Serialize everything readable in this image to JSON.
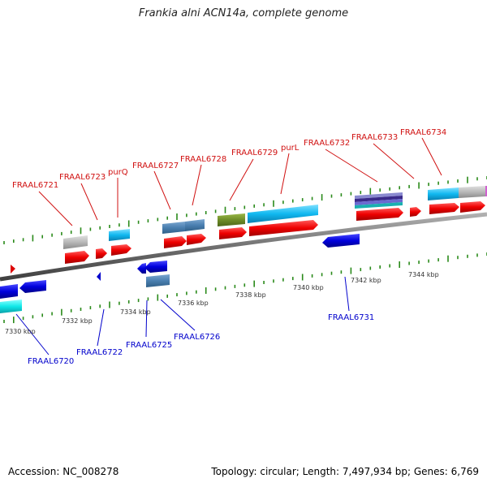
{
  "title": "Frankia alni ACN14a, complete genome",
  "footer": {
    "accession": "Accession: NC_008278",
    "summary": "Topology: circular; Length: 7,497,934 bp; Genes: 6,769"
  },
  "colors": {
    "backbone": "#8c8c8c",
    "tick": "#2a8a1a",
    "top_label": "#d01010",
    "bottom_label": "#0000cc",
    "scale_text": "#333333"
  },
  "scale_labels": [
    "7330 kbp",
    "7332 kbp",
    "7334 kbp",
    "7336 kbp",
    "7338 kbp",
    "7340 kbp",
    "7342 kbp",
    "7344 kbp"
  ],
  "top_labels": [
    "FRAAL6721",
    "FRAAL6723",
    "purQ",
    "FRAAL6727",
    "FRAAL6728",
    "FRAAL6729",
    "purL",
    "FRAAL6732",
    "FRAAL6733",
    "FRAAL6734"
  ],
  "bottom_labels": [
    "FRAAL6720",
    "FRAAL6722",
    "FRAAL6725",
    "FRAAL6726",
    "FRAAL6731"
  ]
}
